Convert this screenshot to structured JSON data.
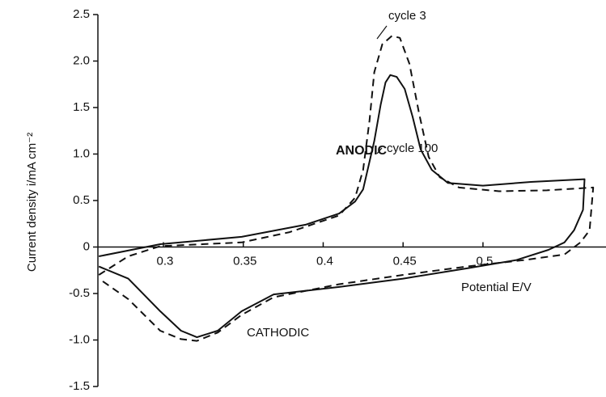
{
  "chart_data": {
    "type": "line",
    "ylabel": "Current density  i/mA cm⁻²",
    "xlabel": "Potential E/V",
    "annotations": [
      "ANODIC",
      "CATHODIC"
    ],
    "xlim": [
      0.259,
      0.577
    ],
    "xticks": [
      0.3,
      0.35,
      0.4,
      0.45,
      0.5
    ],
    "ylim": [
      -1.5,
      2.5
    ],
    "yticks": [
      -1.5,
      {
        "value": -1.0,
        "label": "-1.0"
      },
      -0.5,
      0,
      0.5,
      {
        "value": 1.0,
        "label": "1.0"
      },
      1.5,
      {
        "value": 2.0,
        "label": "2.0"
      },
      2.5
    ],
    "series": [
      {
        "name": "cycle 3",
        "color": "#111111",
        "dashed": true,
        "x": [
          0.2596,
          0.278,
          0.298,
          0.349,
          0.379,
          0.41,
          0.42,
          0.425,
          0.429,
          0.432,
          0.437,
          0.443,
          0.448,
          0.454,
          0.46,
          0.466,
          0.473,
          0.485,
          0.51,
          0.54,
          0.569,
          0.5667,
          0.561,
          0.551,
          0.526,
          0.49,
          0.45,
          0.41,
          0.369,
          0.349,
          0.334,
          0.321,
          0.311,
          0.298,
          0.278,
          0.2596
        ],
        "values": [
          -0.3,
          -0.1,
          0.01,
          0.05,
          0.16,
          0.34,
          0.53,
          0.83,
          1.36,
          1.88,
          2.18,
          2.27,
          2.25,
          1.97,
          1.44,
          0.97,
          0.75,
          0.64,
          0.6,
          0.61,
          0.64,
          0.18,
          0.05,
          -0.08,
          -0.14,
          -0.21,
          -0.3,
          -0.4,
          -0.54,
          -0.73,
          -0.92,
          -1.01,
          -0.99,
          -0.9,
          -0.56,
          -0.34
        ]
      },
      {
        "name": "cycle 100",
        "color": "#111111",
        "dashed": false,
        "x": [
          0.2596,
          0.298,
          0.349,
          0.389,
          0.41,
          0.42,
          0.425,
          0.432,
          0.436,
          0.439,
          0.442,
          0.446,
          0.451,
          0.456,
          0.461,
          0.468,
          0.478,
          0.5,
          0.53,
          0.5636,
          0.5626,
          0.557,
          0.551,
          0.541,
          0.521,
          0.49,
          0.45,
          0.41,
          0.369,
          0.349,
          0.334,
          0.321,
          0.311,
          0.298,
          0.278,
          0.2596
        ],
        "values": [
          -0.1,
          0.03,
          0.11,
          0.24,
          0.36,
          0.49,
          0.62,
          1.14,
          1.53,
          1.77,
          1.85,
          1.83,
          1.7,
          1.4,
          1.05,
          0.83,
          0.69,
          0.66,
          0.7,
          0.73,
          0.4,
          0.18,
          0.05,
          -0.03,
          -0.14,
          -0.23,
          -0.34,
          -0.43,
          -0.51,
          -0.69,
          -0.9,
          -0.97,
          -0.9,
          -0.69,
          -0.34,
          -0.21
        ]
      }
    ]
  }
}
